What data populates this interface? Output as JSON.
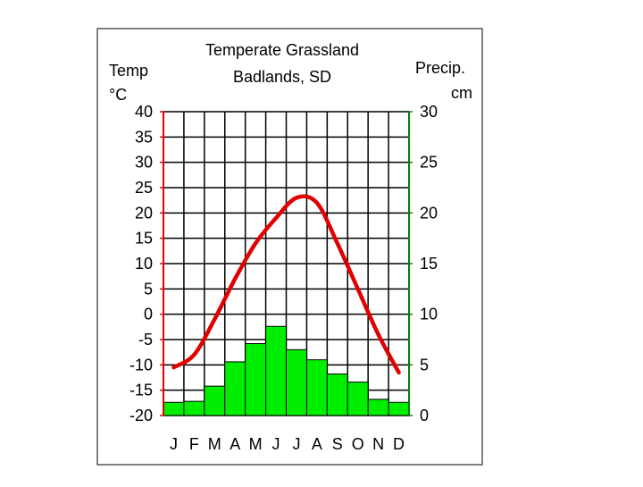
{
  "chart_data": {
    "type": "climate-graph",
    "title": "Temperate Grassland",
    "subtitle": "Badlands, SD",
    "ylabel_left_line1": "Temp",
    "ylabel_left_line2": "°C",
    "ylabel_right_line1": "Precip.",
    "ylabel_right_line2": "cm",
    "categories": [
      "J",
      "F",
      "M",
      "A",
      "M",
      "J",
      "J",
      "A",
      "S",
      "O",
      "N",
      "D"
    ],
    "temperature": {
      "name": "Temperature (°C)",
      "color": "#e00000",
      "ylim": [
        -20,
        40
      ],
      "ticks": [
        40,
        35,
        30,
        25,
        20,
        15,
        10,
        5,
        0,
        -5,
        -10,
        -15,
        -20
      ],
      "values": [
        -10.5,
        -8,
        -1,
        7,
        14,
        19,
        23,
        22,
        14,
        5,
        -4,
        -11.5
      ]
    },
    "precipitation": {
      "name": "Precipitation (cm)",
      "color": "#00ee00",
      "ylim": [
        0,
        30
      ],
      "ticks": [
        30,
        25,
        20,
        15,
        10,
        5,
        0
      ],
      "values": [
        1.3,
        1.4,
        2.9,
        5.3,
        7.1,
        8.8,
        6.5,
        5.5,
        4.1,
        3.3,
        1.6,
        1.3
      ]
    },
    "grid": true
  }
}
